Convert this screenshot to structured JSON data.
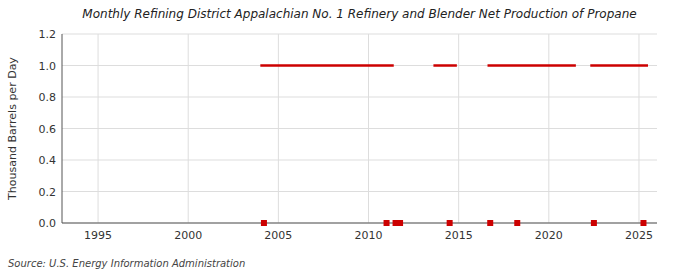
{
  "chart_data": {
    "type": "line",
    "title": "Monthly Refining District Appalachian No. 1 Refinery and Blender Net Production of Propane",
    "ylabel": "Thousand Barrels per Day",
    "source": "Source: U.S. Energy Information Administration",
    "xlim": [
      1993,
      2026
    ],
    "ylim": [
      0.0,
      1.2
    ],
    "xticks": [
      1995,
      2000,
      2005,
      2010,
      2015,
      2020,
      2025
    ],
    "yticks": [
      {
        "value": 0.0,
        "label": "0.0"
      },
      0.2,
      0.4,
      0.6,
      0.8,
      {
        "value": 1.0,
        "label": "1.0"
      },
      1.2
    ],
    "grid": true,
    "series": [
      {
        "type": "line",
        "color": "#cc0000",
        "x": [
          2004.0,
          2011.4
        ],
        "values": [
          1.0,
          1.0
        ]
      },
      {
        "type": "line",
        "color": "#cc0000",
        "x": [
          2013.6,
          2014.9
        ],
        "values": [
          1.0,
          1.0
        ]
      },
      {
        "type": "line",
        "color": "#cc0000",
        "x": [
          2016.6,
          2021.5
        ],
        "values": [
          1.0,
          1.0
        ]
      },
      {
        "type": "line",
        "color": "#cc0000",
        "x": [
          2022.3,
          2025.5
        ],
        "values": [
          1.0,
          1.0
        ]
      },
      {
        "type": "scatter",
        "marker": "square",
        "color": "#cc0000",
        "x": [
          2004.2,
          2011.0,
          2011.5,
          2011.75,
          2014.5,
          2016.75,
          2018.25,
          2022.5,
          2025.25
        ],
        "values": [
          0.0,
          0.0,
          0.0,
          0.0,
          0.0,
          0.0,
          0.0,
          0.0,
          0.0
        ]
      }
    ]
  }
}
